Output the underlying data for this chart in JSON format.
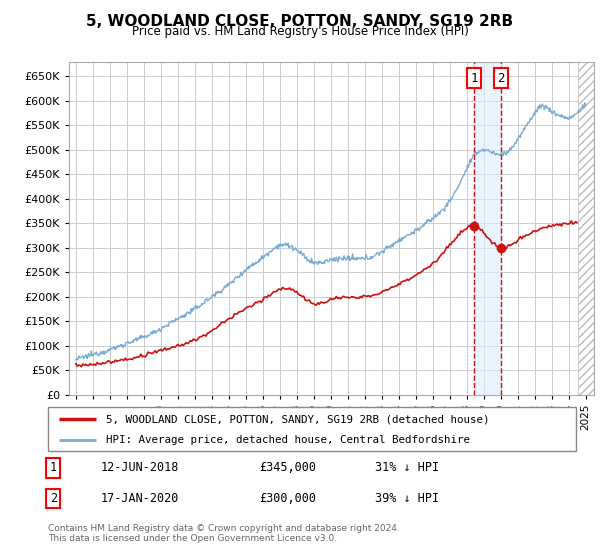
{
  "title": "5, WOODLAND CLOSE, POTTON, SANDY, SG19 2RB",
  "subtitle": "Price paid vs. HM Land Registry's House Price Index (HPI)",
  "ylim": [
    0,
    680000
  ],
  "yticks": [
    0,
    50000,
    100000,
    150000,
    200000,
    250000,
    300000,
    350000,
    400000,
    450000,
    500000,
    550000,
    600000,
    650000
  ],
  "hpi_color": "#7aadd4",
  "price_color": "#cc1111",
  "marker1_date_x": 2018.44,
  "marker2_date_x": 2020.04,
  "marker1_price": 345000,
  "marker2_price": 300000,
  "legend_line1": "5, WOODLAND CLOSE, POTTON, SANDY, SG19 2RB (detached house)",
  "legend_line2": "HPI: Average price, detached house, Central Bedfordshire",
  "footer": "Contains HM Land Registry data © Crown copyright and database right 2024.\nThis data is licensed under the Open Government Licence v3.0.",
  "bg_color": "#ffffff",
  "grid_color": "#cccccc",
  "xlim_left": 1994.6,
  "xlim_right": 2025.5,
  "hatch_start": 2024.58,
  "hpi_keypoints_x": [
    1995,
    1996,
    1997,
    1998,
    1999,
    2000,
    2001,
    2002,
    2003,
    2004,
    2005,
    2006,
    2007,
    2008,
    2009,
    2010,
    2011,
    2012,
    2013,
    2014,
    2015,
    2016,
    2017,
    2018,
    2018.5,
    2019,
    2019.5,
    2020,
    2021,
    2022,
    2022.5,
    2023,
    2023.5,
    2024,
    2024.5,
    2025
  ],
  "hpi_keypoints_y": [
    72000,
    82000,
    92000,
    105000,
    118000,
    135000,
    155000,
    175000,
    200000,
    225000,
    255000,
    280000,
    305000,
    295000,
    270000,
    275000,
    278000,
    278000,
    292000,
    315000,
    335000,
    360000,
    395000,
    460000,
    490000,
    500000,
    495000,
    490000,
    520000,
    575000,
    590000,
    578000,
    570000,
    565000,
    575000,
    595000
  ],
  "price_keypoints_x": [
    1995,
    1996,
    1997,
    1998,
    1999,
    2000,
    2001,
    2002,
    2003,
    2004,
    2005,
    2006,
    2007,
    2008,
    2009,
    2010,
    2011,
    2012,
    2013,
    2014,
    2015,
    2016,
    2017,
    2018,
    2018.44,
    2019,
    2020.04,
    2021,
    2022,
    2023,
    2024,
    2024.5
  ],
  "price_keypoints_y": [
    60000,
    62000,
    67000,
    72000,
    80000,
    90000,
    100000,
    112000,
    130000,
    155000,
    175000,
    195000,
    215000,
    210000,
    185000,
    195000,
    198000,
    200000,
    210000,
    225000,
    245000,
    268000,
    305000,
    340000,
    345000,
    330000,
    300000,
    315000,
    335000,
    345000,
    350000,
    352000
  ]
}
